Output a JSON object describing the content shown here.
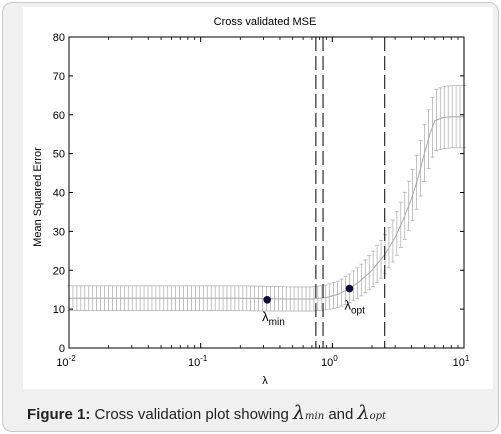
{
  "chart_data": {
    "type": "line",
    "title": "Cross validated MSE",
    "xlabel": "λ",
    "ylabel": "Mean Squared Error",
    "xscale": "log",
    "xlim": [
      0.01,
      10
    ],
    "ylim": [
      0,
      80
    ],
    "grid": false,
    "x_ticks": [
      {
        "value": 0.01,
        "base": "10",
        "exp": "-2"
      },
      {
        "value": 0.1,
        "base": "10",
        "exp": "-1"
      },
      {
        "value": 1,
        "base": "10",
        "exp": "0"
      },
      {
        "value": 10,
        "base": "10",
        "exp": "1"
      }
    ],
    "y_ticks": [
      0,
      10,
      20,
      30,
      40,
      50,
      60,
      70,
      80
    ],
    "series": [
      {
        "x": [
          0.01,
          0.02,
          0.05,
          0.1,
          0.2,
          0.3,
          0.5,
          0.7,
          0.9,
          1.1,
          1.3,
          1.6,
          2.0,
          2.5,
          3.0,
          3.5,
          4.0,
          4.5,
          5.0,
          5.5,
          6.0,
          7.0,
          8.0,
          10.0
        ],
        "y": [
          12.8,
          12.8,
          12.8,
          12.8,
          12.8,
          12.7,
          12.6,
          12.6,
          13.0,
          13.8,
          15.0,
          17.0,
          20.0,
          24.0,
          28.5,
          33.5,
          38.5,
          44.0,
          50.0,
          55.0,
          58.5,
          59.3,
          59.5,
          59.5
        ],
        "err": [
          3.2,
          3.2,
          3.2,
          3.2,
          3.2,
          3.2,
          3.1,
          3.1,
          3.2,
          3.4,
          3.6,
          4.0,
          4.5,
          5.0,
          5.5,
          6.0,
          6.5,
          7.0,
          7.3,
          7.6,
          7.8,
          8.0,
          8.0,
          8.0
        ]
      }
    ],
    "markers": [
      {
        "x": 0.32,
        "y": 12.4,
        "label": "λ",
        "sub": "min"
      },
      {
        "x": 1.35,
        "y": 15.3,
        "label": "λ",
        "sub": "opt"
      }
    ],
    "vlines": [
      0.75,
      0.85,
      2.5
    ],
    "colors": {
      "line": "#a9a9a9",
      "marker": "#0a0a3c",
      "vline": "#000000"
    }
  },
  "caption": {
    "figure_label": "Figure 1:",
    "text": "Cross validation plot showing",
    "sym1": "λ",
    "sub1": "min",
    "conj": "and",
    "sym2": "λ",
    "sub2": "opt"
  }
}
